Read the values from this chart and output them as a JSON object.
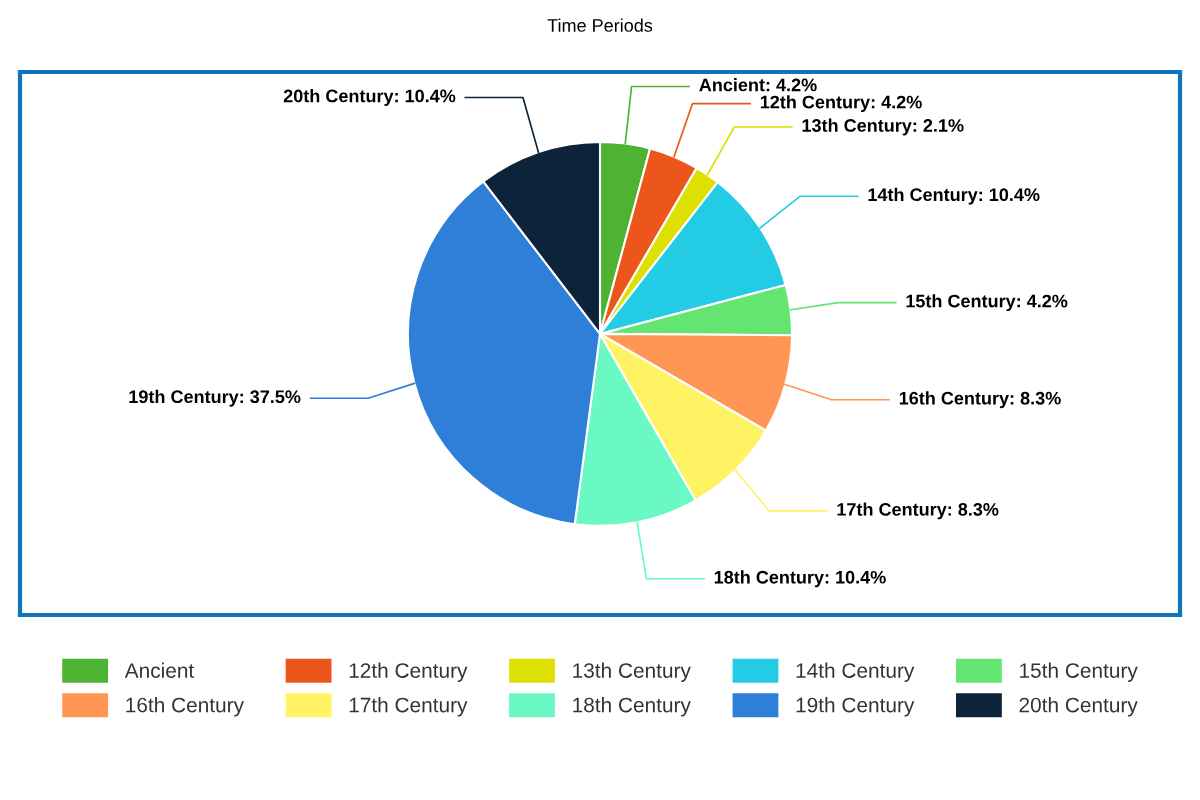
{
  "chart_data": {
    "type": "pie",
    "title": "Time Periods",
    "categories": [
      "Ancient",
      "12th Century",
      "13th Century",
      "14th Century",
      "15th Century",
      "16th Century",
      "17th Century",
      "18th Century",
      "19th Century",
      "20th Century"
    ],
    "values": [
      4.2,
      4.2,
      2.1,
      10.4,
      4.2,
      8.3,
      8.3,
      10.4,
      37.5,
      10.4
    ],
    "colors": [
      "#4eb233",
      "#ec561b",
      "#dde000",
      "#24cbe5",
      "#64e572",
      "#ff9655",
      "#fff263",
      "#6af9c4",
      "#2f7ed8",
      "#0d233a"
    ],
    "value_labels": [
      "Ancient: 4.2%",
      "12th Century: 4.2%",
      "13th Century: 2.1%",
      "14th Century: 10.4%",
      "15th Century: 4.2%",
      "16th Century: 8.3%",
      "17th Century: 8.3%",
      "18th Century: 10.4%",
      "19th Century: 37.5%",
      "20th Century: 10.4%"
    ],
    "legend": "bottom"
  }
}
